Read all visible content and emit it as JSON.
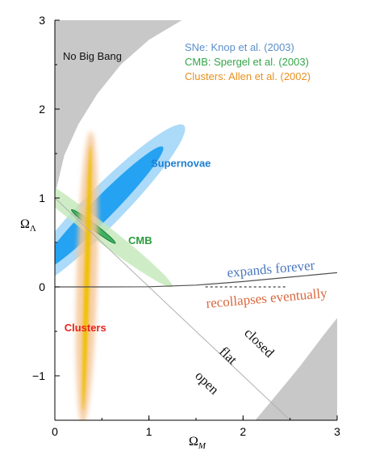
{
  "chart_data": {
    "type": "scatter",
    "title": "",
    "xlabel": "Ω",
    "xlabel_sub": "M",
    "ylabel": "Ω",
    "ylabel_sub": "Λ",
    "xlim": [
      0,
      3
    ],
    "ylim": [
      -1.5,
      3
    ],
    "xticks": [
      0,
      1,
      2,
      3
    ],
    "yticks": [
      3,
      2,
      1,
      0,
      -1
    ],
    "ytick_labels": [
      "3",
      "2",
      "1",
      "0",
      "−1"
    ],
    "grid": false,
    "legend_position": "top-right",
    "legend": [
      {
        "label": "SNe:   Knop et al. (2003)",
        "color": "#5b8fc9"
      },
      {
        "label": "CMB:  Spergel et al.  (2003)",
        "color": "#33a64a"
      },
      {
        "label": "Clusters: Allen et al.  (2002)",
        "color": "#e8901e"
      }
    ],
    "regions": {
      "no_big_bang": {
        "label": "No Big Bang",
        "color": "#c8c8c8"
      },
      "recollapse": {
        "color": "#c8c8c8"
      }
    },
    "constraints": [
      {
        "name": "Supernovae",
        "color": "#1e7fd0",
        "label_at": [
          1.02,
          1.35
        ],
        "center": [
          0.5,
          0.88
        ],
        "direction_deg": 47,
        "sigma_major": [
          0.95,
          1.28
        ],
        "sigma_minor": [
          0.12,
          0.21
        ],
        "fills": [
          "#1e9ff0",
          "#9ed4f8"
        ]
      },
      {
        "name": "CMB",
        "color": "#2a9c3c",
        "label_at": [
          0.78,
          0.48
        ],
        "center": [
          0.41,
          0.68
        ],
        "direction_deg": -39,
        "sigma_major": [
          0.3,
          1.08
        ],
        "sigma_minor": [
          0.03,
          0.1
        ],
        "fills": [
          "#2eaa55",
          "#c2e8b8"
        ]
      },
      {
        "name": "Clusters",
        "color": "#e8251e",
        "label_at": [
          0.1,
          -0.5
        ],
        "center": [
          0.34,
          0.1
        ],
        "direction_deg": 88.5,
        "sigma_major": [
          1.5,
          1.65
        ],
        "sigma_minor": [
          0.03,
          0.11
        ],
        "fills": [
          "#f0c000",
          "#f5c79a"
        ]
      }
    ],
    "lines": [
      {
        "name": "flat",
        "points": [
          [
            0,
            1
          ],
          [
            2.5,
            -1.5
          ]
        ],
        "color": "#b0b0b0"
      },
      {
        "name": "expansion boundary",
        "points": [
          [
            0,
            0
          ],
          [
            0.5,
            0
          ],
          [
            1,
            0.002
          ],
          [
            1.5,
            0.02
          ],
          [
            2,
            0.06
          ],
          [
            2.5,
            0.11
          ],
          [
            3,
            0.16
          ]
        ],
        "color": "#505050"
      }
    ],
    "annotations": {
      "expands_forever": "expands forever",
      "recollapses": "recollapses eventually",
      "closed": "closed",
      "flat": "flat",
      "open": "open"
    },
    "annotation_colors": {
      "expands_forever": "#4a78c0",
      "recollapses": "#d8683e",
      "geometry": "#111111"
    }
  }
}
